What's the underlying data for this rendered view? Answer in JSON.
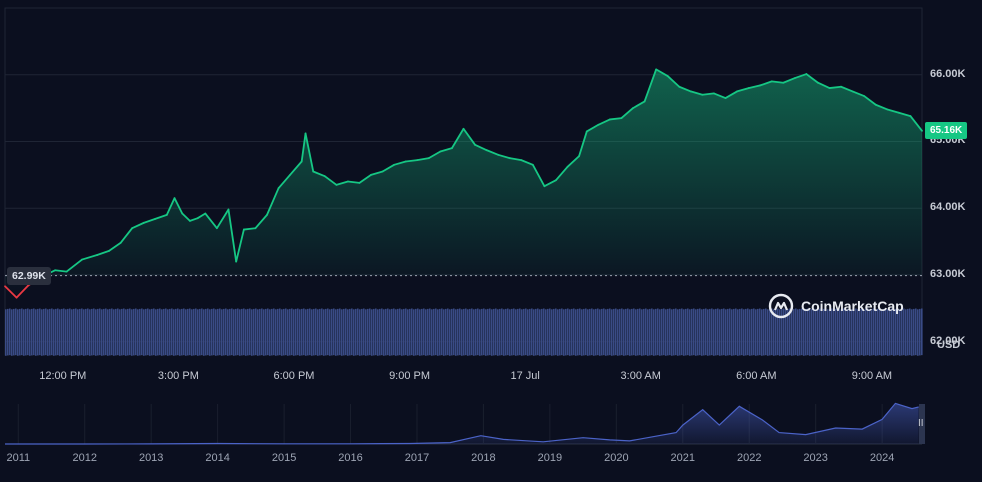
{
  "chart_data": {
    "type": "area",
    "currency": "USD",
    "current_price": "65.16K",
    "open_price": "62.99K",
    "open_value": 62990,
    "ylim": [
      61800,
      67000
    ],
    "yticks": [
      {
        "label": "66.00K",
        "value": 66000
      },
      {
        "label": "65.00K",
        "value": 65000
      },
      {
        "label": "64.00K",
        "value": 64000
      },
      {
        "label": "63.00K",
        "value": 63000
      },
      {
        "label": "62.00K",
        "value": 62000
      }
    ],
    "xticks": [
      {
        "label": "12:00 PM",
        "h": 1.5
      },
      {
        "label": "3:00 PM",
        "h": 4.5
      },
      {
        "label": "6:00 PM",
        "h": 7.5
      },
      {
        "label": "9:00 PM",
        "h": 10.5
      },
      {
        "label": "17 Jul",
        "h": 13.5
      },
      {
        "label": "3:00 AM",
        "h": 16.5
      },
      {
        "label": "6:00 AM",
        "h": 19.5
      },
      {
        "label": "9:00 AM",
        "h": 22.5
      }
    ],
    "x_range_hours": [
      0,
      23.8
    ],
    "price_series": [
      [
        0.0,
        62830
      ],
      [
        0.3,
        62660
      ],
      [
        0.6,
        62840
      ],
      [
        0.9,
        62960
      ],
      [
        1.3,
        63070
      ],
      [
        1.6,
        63050
      ],
      [
        2.0,
        63230
      ],
      [
        2.4,
        63300
      ],
      [
        2.7,
        63360
      ],
      [
        3.0,
        63480
      ],
      [
        3.3,
        63700
      ],
      [
        3.6,
        63780
      ],
      [
        3.9,
        63840
      ],
      [
        4.2,
        63900
      ],
      [
        4.4,
        64150
      ],
      [
        4.6,
        63920
      ],
      [
        4.8,
        63810
      ],
      [
        5.0,
        63850
      ],
      [
        5.2,
        63920
      ],
      [
        5.5,
        63700
      ],
      [
        5.8,
        63980
      ],
      [
        6.0,
        63200
      ],
      [
        6.2,
        63680
      ],
      [
        6.5,
        63700
      ],
      [
        6.8,
        63900
      ],
      [
        7.1,
        64300
      ],
      [
        7.4,
        64500
      ],
      [
        7.7,
        64700
      ],
      [
        7.8,
        65120
      ],
      [
        8.0,
        64550
      ],
      [
        8.3,
        64480
      ],
      [
        8.6,
        64350
      ],
      [
        8.9,
        64400
      ],
      [
        9.2,
        64380
      ],
      [
        9.5,
        64500
      ],
      [
        9.8,
        64550
      ],
      [
        10.1,
        64650
      ],
      [
        10.4,
        64700
      ],
      [
        10.7,
        64720
      ],
      [
        11.0,
        64750
      ],
      [
        11.3,
        64850
      ],
      [
        11.6,
        64900
      ],
      [
        11.9,
        65190
      ],
      [
        12.2,
        64950
      ],
      [
        12.5,
        64870
      ],
      [
        12.8,
        64800
      ],
      [
        13.1,
        64750
      ],
      [
        13.4,
        64720
      ],
      [
        13.7,
        64650
      ],
      [
        14.0,
        64330
      ],
      [
        14.3,
        64420
      ],
      [
        14.6,
        64620
      ],
      [
        14.9,
        64780
      ],
      [
        15.1,
        65150
      ],
      [
        15.4,
        65250
      ],
      [
        15.7,
        65330
      ],
      [
        16.0,
        65350
      ],
      [
        16.3,
        65500
      ],
      [
        16.6,
        65600
      ],
      [
        16.9,
        66080
      ],
      [
        17.2,
        65980
      ],
      [
        17.5,
        65820
      ],
      [
        17.8,
        65750
      ],
      [
        18.1,
        65700
      ],
      [
        18.4,
        65720
      ],
      [
        18.7,
        65650
      ],
      [
        19.0,
        65750
      ],
      [
        19.3,
        65800
      ],
      [
        19.6,
        65840
      ],
      [
        19.9,
        65900
      ],
      [
        20.2,
        65880
      ],
      [
        20.5,
        65950
      ],
      [
        20.8,
        66010
      ],
      [
        21.1,
        65880
      ],
      [
        21.4,
        65800
      ],
      [
        21.7,
        65820
      ],
      [
        22.0,
        65750
      ],
      [
        22.3,
        65680
      ],
      [
        22.6,
        65550
      ],
      [
        22.9,
        65480
      ],
      [
        23.2,
        65430
      ],
      [
        23.5,
        65380
      ],
      [
        23.8,
        65160
      ]
    ],
    "volume_level": 0.93,
    "history": {
      "years": [
        "2011",
        "2012",
        "2013",
        "2014",
        "2015",
        "2016",
        "2017",
        "2018",
        "2019",
        "2020",
        "2021",
        "2022",
        "2023",
        "2024"
      ],
      "year_range": [
        2010.8,
        2024.6
      ],
      "ymax": 70000,
      "series": [
        [
          2010.8,
          0
        ],
        [
          2012.0,
          10
        ],
        [
          2013.0,
          130
        ],
        [
          2014.0,
          800
        ],
        [
          2015.0,
          300
        ],
        [
          2016.0,
          420
        ],
        [
          2016.9,
          900
        ],
        [
          2017.5,
          2500
        ],
        [
          2017.96,
          14500
        ],
        [
          2018.3,
          8000
        ],
        [
          2018.9,
          3800
        ],
        [
          2019.5,
          11000
        ],
        [
          2019.9,
          7200
        ],
        [
          2020.2,
          5500
        ],
        [
          2020.9,
          20000
        ],
        [
          2021.0,
          33000
        ],
        [
          2021.3,
          60000
        ],
        [
          2021.55,
          33000
        ],
        [
          2021.85,
          66000
        ],
        [
          2022.2,
          42000
        ],
        [
          2022.45,
          20000
        ],
        [
          2022.85,
          16500
        ],
        [
          2023.3,
          28000
        ],
        [
          2023.7,
          26000
        ],
        [
          2024.0,
          43000
        ],
        [
          2024.2,
          71000
        ],
        [
          2024.45,
          62000
        ],
        [
          2024.55,
          65000
        ]
      ]
    },
    "colors": {
      "background": "#0b0f1f",
      "up": "#16c784",
      "down": "#ea3943",
      "volume": "#3a4b86",
      "history_line": "#4b63c8"
    }
  },
  "branding": {
    "name": "CoinMarketCap"
  },
  "currency_label": "USD",
  "navigator_handle": "II"
}
